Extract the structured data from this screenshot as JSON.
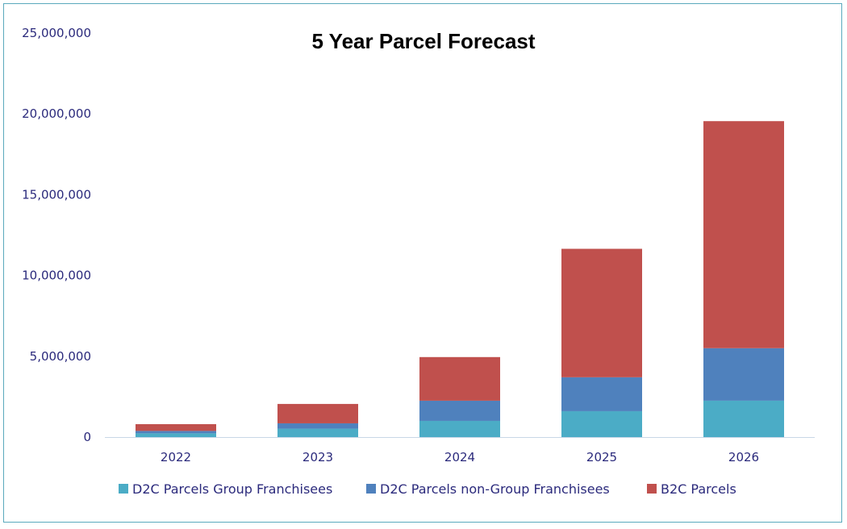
{
  "chart_data": {
    "type": "bar",
    "stacked": true,
    "title": "5 Year Parcel Forecast",
    "xlabel": "",
    "ylabel": "",
    "categories": [
      "2022",
      "2023",
      "2024",
      "2025",
      "2026"
    ],
    "ylim": [
      0,
      25000000
    ],
    "yticks": [
      0,
      5000000,
      10000000,
      15000000,
      20000000,
      25000000
    ],
    "ytick_labels": [
      "0",
      "5,000,000",
      "10,000,000",
      "15,000,000",
      "20,000,000",
      "25,000,000"
    ],
    "grid": false,
    "legend_position": "bottom",
    "series": [
      {
        "name": "D2C Parcels Group Franchisees",
        "color": "#4bacc6",
        "values": [
          230000,
          520000,
          1000000,
          1600000,
          2250000
        ]
      },
      {
        "name": "D2C Parcels non-Group Franchisees",
        "color": "#4f81bd",
        "values": [
          150000,
          330000,
          1250000,
          2100000,
          3250000
        ]
      },
      {
        "name": "B2C Parcels",
        "color": "#c0504d",
        "values": [
          420000,
          1200000,
          2700000,
          7950000,
          14050000
        ]
      }
    ]
  }
}
